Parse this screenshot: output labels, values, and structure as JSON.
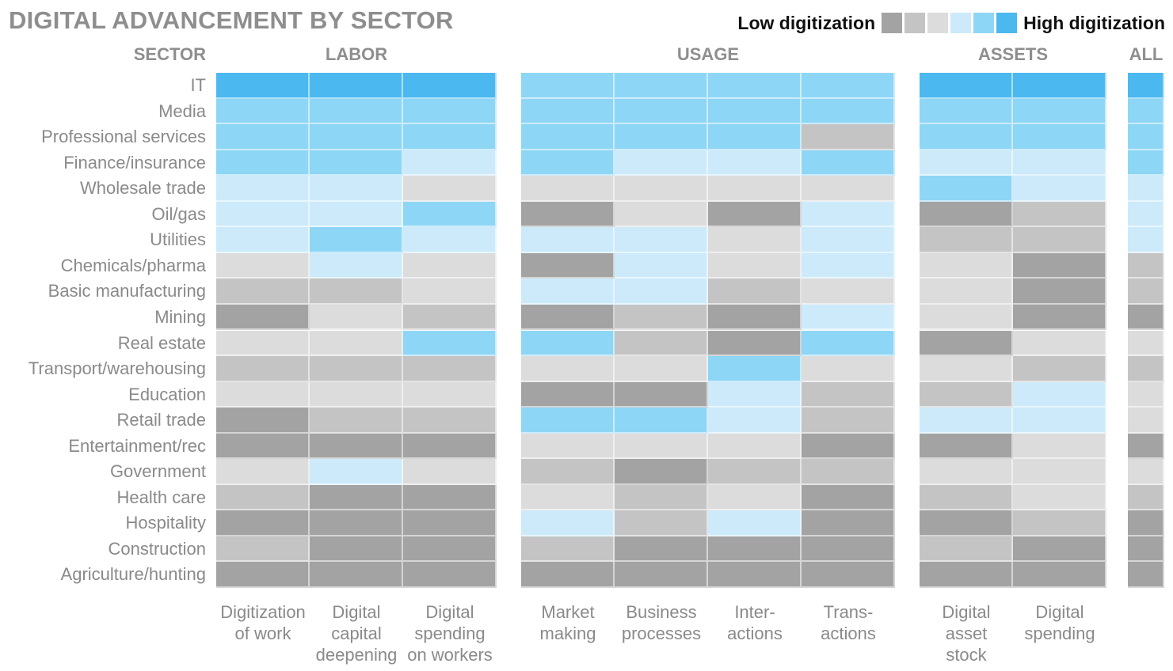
{
  "chart_data": {
    "type": "heatmap",
    "title": "DIGITAL ADVANCEMENT BY SECTOR",
    "legend": {
      "low_label": "Low digitization",
      "high_label": "High digitization",
      "levels": [
        1,
        2,
        3,
        4,
        5,
        6
      ],
      "colors": [
        "#a3a3a3",
        "#c4c4c4",
        "#dcdcdc",
        "#cdeafa",
        "#8ed6f5",
        "#4cb8f0"
      ],
      "placement": "top-right"
    },
    "row_header": "SECTOR",
    "groups": [
      {
        "name": "LABOR",
        "columns": [
          "Digitization\nof work",
          "Digital\ncapital\ndeepening",
          "Digital\nspending\non workers"
        ]
      },
      {
        "name": "USAGE",
        "columns": [
          "Market\nmaking",
          "Business\nprocesses",
          "Inter-\nactions",
          "Trans-\nactions"
        ]
      },
      {
        "name": "ASSETS",
        "columns": [
          "Digital\nasset\nstock",
          "Digital\nspending"
        ]
      },
      {
        "name": "ALL",
        "columns": [
          ""
        ]
      }
    ],
    "rows": [
      {
        "sector": "IT",
        "values": [
          6,
          6,
          6,
          5,
          5,
          5,
          5,
          6,
          6,
          6
        ]
      },
      {
        "sector": "Media",
        "values": [
          5,
          5,
          5,
          5,
          5,
          5,
          5,
          5,
          5,
          5
        ]
      },
      {
        "sector": "Professional services",
        "values": [
          5,
          5,
          5,
          5,
          5,
          5,
          2,
          5,
          5,
          5
        ]
      },
      {
        "sector": "Finance/insurance",
        "values": [
          5,
          5,
          4,
          5,
          4,
          4,
          5,
          4,
          4,
          5
        ]
      },
      {
        "sector": "Wholesale trade",
        "values": [
          4,
          4,
          3,
          3,
          3,
          3,
          3,
          5,
          4,
          4
        ]
      },
      {
        "sector": "Oil/gas",
        "values": [
          4,
          4,
          5,
          1,
          3,
          1,
          4,
          1,
          2,
          4
        ]
      },
      {
        "sector": "Utilities",
        "values": [
          4,
          5,
          4,
          4,
          4,
          3,
          4,
          2,
          2,
          4
        ]
      },
      {
        "sector": "Chemicals/pharma",
        "values": [
          3,
          4,
          3,
          1,
          4,
          3,
          4,
          3,
          1,
          2
        ]
      },
      {
        "sector": "Basic manufacturing",
        "values": [
          2,
          2,
          3,
          4,
          4,
          2,
          3,
          3,
          1,
          2
        ]
      },
      {
        "sector": "Mining",
        "values": [
          1,
          3,
          2,
          1,
          2,
          1,
          4,
          3,
          1,
          1
        ]
      },
      {
        "sector": "Real estate",
        "values": [
          3,
          3,
          5,
          5,
          2,
          1,
          5,
          1,
          3,
          3
        ]
      },
      {
        "sector": "Transport/warehousing",
        "values": [
          2,
          2,
          2,
          3,
          3,
          5,
          3,
          3,
          2,
          2
        ]
      },
      {
        "sector": "Education",
        "values": [
          3,
          3,
          3,
          1,
          1,
          4,
          2,
          2,
          4,
          3
        ]
      },
      {
        "sector": "Retail trade",
        "values": [
          1,
          2,
          2,
          5,
          5,
          4,
          2,
          4,
          4,
          3
        ]
      },
      {
        "sector": "Entertainment/rec",
        "values": [
          1,
          1,
          1,
          3,
          3,
          3,
          1,
          1,
          3,
          1
        ]
      },
      {
        "sector": "Government",
        "values": [
          3,
          4,
          3,
          2,
          1,
          2,
          2,
          3,
          3,
          3
        ]
      },
      {
        "sector": "Health care",
        "values": [
          2,
          1,
          1,
          3,
          2,
          3,
          1,
          2,
          3,
          2
        ]
      },
      {
        "sector": "Hospitality",
        "values": [
          1,
          1,
          1,
          4,
          2,
          4,
          1,
          1,
          2,
          1
        ]
      },
      {
        "sector": "Construction",
        "values": [
          2,
          1,
          1,
          2,
          1,
          1,
          1,
          2,
          1,
          1
        ]
      },
      {
        "sector": "Agriculture/hunting",
        "values": [
          1,
          1,
          1,
          1,
          1,
          1,
          1,
          1,
          1,
          1
        ]
      }
    ]
  }
}
